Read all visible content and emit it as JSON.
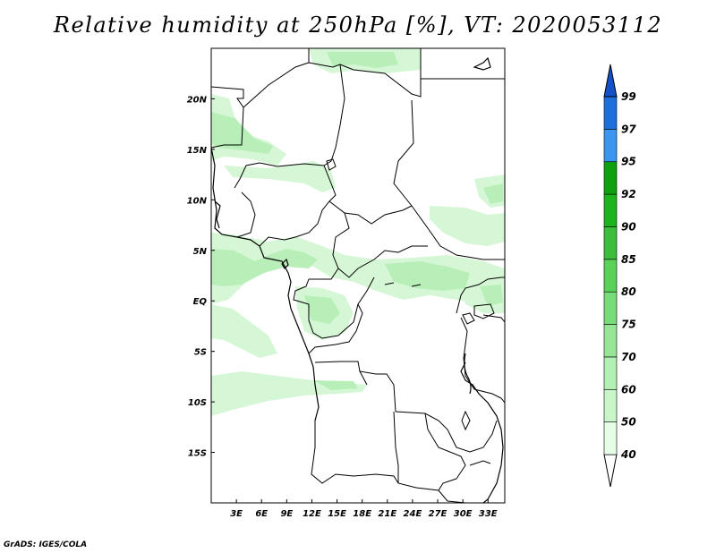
{
  "title": "Relative humidity at 250hPa [%], VT: 2020053112",
  "credit": "GrADS: IGES/COLA",
  "map": {
    "lon_ticks": [
      "3E",
      "6E",
      "9E",
      "12E",
      "15E",
      "18E",
      "21E",
      "24E",
      "27E",
      "30E",
      "33E"
    ],
    "lat_ticks": [
      "20N",
      "15N",
      "10N",
      "5N",
      "EQ",
      "5S",
      "10S",
      "15S"
    ],
    "lon_range": [
      0,
      35
    ],
    "lat_range": [
      -20,
      25
    ],
    "border_color": "#000000"
  },
  "colorbar": {
    "levels": [
      "40",
      "50",
      "60",
      "70",
      "75",
      "80",
      "85",
      "90",
      "92",
      "95",
      "97",
      "99"
    ],
    "colors": [
      "#ffffff",
      "#e6fde6",
      "#c8f6c8",
      "#b3f0b3",
      "#96e696",
      "#78dc78",
      "#5ad25a",
      "#3cbe3c",
      "#1eb41e",
      "#0fa00f",
      "#3c96f0",
      "#1e6ede",
      "#1450c8"
    ]
  }
}
